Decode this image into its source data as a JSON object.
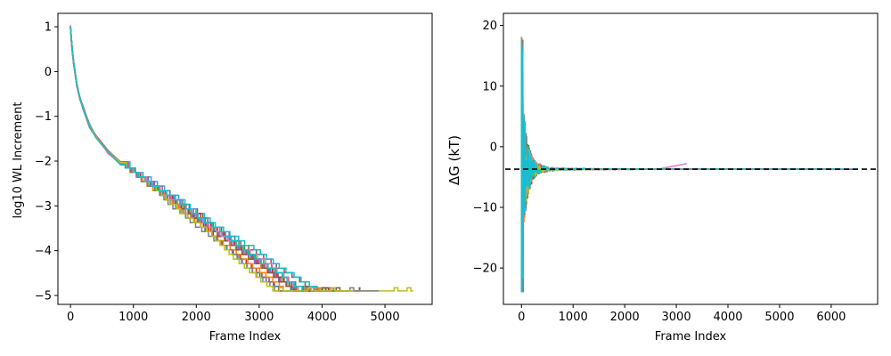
{
  "chart_data": [
    {
      "type": "line",
      "title": "",
      "xlabel": "Frame Index",
      "ylabel": "log10 WL Increment",
      "xlim": [
        -200,
        5750
      ],
      "ylim": [
        -5.2,
        1.3
      ],
      "xticks": [
        0,
        1000,
        2000,
        3000,
        4000,
        5000
      ],
      "xtick_labels": [
        "0",
        "1000",
        "2000",
        "3000",
        "4000",
        "5000"
      ],
      "yticks": [
        -5,
        -4,
        -3,
        -2,
        -1,
        0,
        1
      ],
      "ytick_labels": [
        "−5",
        "−4",
        "−3",
        "−2",
        "−1",
        "0",
        "1"
      ],
      "grid": false,
      "legend": "none",
      "style": "step",
      "y_start": 1,
      "y_floor": -4.9,
      "early_points": [
        [
          0,
          1
        ],
        [
          20,
          0.6
        ],
        [
          50,
          0.2
        ],
        [
          100,
          -0.3
        ],
        [
          150,
          -0.6
        ],
        [
          200,
          -0.8
        ],
        [
          300,
          -1.2
        ],
        [
          400,
          -1.45
        ],
        [
          600,
          -1.8
        ],
        [
          800,
          -2.05
        ]
      ],
      "series_end_x": [
        4000,
        4200,
        3800,
        4100,
        3700,
        4600,
        4300,
        3900,
        5450,
        4200,
        3600,
        3950,
        4400,
        3750,
        4050,
        4150,
        3850,
        4900,
        4500,
        3700
      ],
      "series": [
        {
          "color": "#1f77b4"
        },
        {
          "color": "#ff7f0e"
        },
        {
          "color": "#2ca02c"
        },
        {
          "color": "#d62728"
        },
        {
          "color": "#9467bd"
        },
        {
          "color": "#8c564b"
        },
        {
          "color": "#e377c2"
        },
        {
          "color": "#7f7f7f"
        },
        {
          "color": "#bcbd22"
        },
        {
          "color": "#17becf"
        },
        {
          "color": "#1f77b4"
        },
        {
          "color": "#ff7f0e"
        },
        {
          "color": "#2ca02c"
        },
        {
          "color": "#d62728"
        },
        {
          "color": "#9467bd"
        },
        {
          "color": "#8c564b"
        },
        {
          "color": "#e377c2"
        },
        {
          "color": "#7f7f7f"
        },
        {
          "color": "#bcbd22"
        },
        {
          "color": "#17becf"
        }
      ]
    },
    {
      "type": "line",
      "title": "",
      "xlabel": "Frame Index",
      "ylabel": "ΔG (kT)",
      "xlim": [
        -350,
        6900
      ],
      "ylim": [
        -26,
        22
      ],
      "xticks": [
        0,
        1000,
        2000,
        3000,
        4000,
        5000,
        6000
      ],
      "xtick_labels": [
        "0",
        "1000",
        "2000",
        "3000",
        "4000",
        "5000",
        "6000"
      ],
      "yticks": [
        -20,
        -10,
        0,
        10,
        20
      ],
      "ytick_labels": [
        "−20",
        "−10",
        "0",
        "10",
        "20"
      ],
      "grid": false,
      "legend": "none",
      "reference_line": {
        "y": -3.7,
        "style": "dashed",
        "color": "#000000"
      },
      "converged_value": -3.7,
      "initial_spread": [
        -24,
        20
      ],
      "series_end_x": [
        6500,
        6200,
        6000,
        5800,
        6400,
        5600,
        3200,
        6100,
        5900,
        6300
      ],
      "series": [
        {
          "color": "#1f77b4"
        },
        {
          "color": "#ff7f0e"
        },
        {
          "color": "#2ca02c"
        },
        {
          "color": "#d62728"
        },
        {
          "color": "#9467bd"
        },
        {
          "color": "#8c564b"
        },
        {
          "color": "#e377c2"
        },
        {
          "color": "#7f7f7f"
        },
        {
          "color": "#bcbd22"
        },
        {
          "color": "#17becf"
        }
      ]
    }
  ]
}
